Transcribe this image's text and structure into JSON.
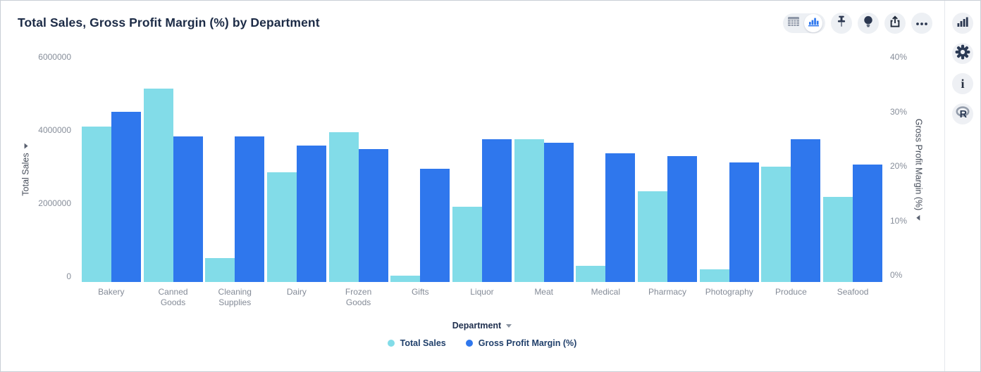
{
  "header": {
    "title": "Total Sales, Gross Profit Margin (%) by Department"
  },
  "toolbar": {
    "view_toggle": [
      {
        "name": "table-view",
        "icon": "table-icon",
        "active": false
      },
      {
        "name": "chart-view",
        "icon": "bar-chart-icon",
        "active": true
      }
    ],
    "buttons": [
      {
        "name": "pin",
        "icon": "pushpin-icon"
      },
      {
        "name": "insights",
        "icon": "lightbulb-icon"
      },
      {
        "name": "export",
        "icon": "share-icon"
      },
      {
        "name": "more",
        "icon": "ellipsis-icon"
      }
    ]
  },
  "rail": {
    "info_glyph": "i",
    "buttons": [
      {
        "name": "chart-options",
        "icon": "bar-chart-icon"
      },
      {
        "name": "settings",
        "icon": "gear-icon"
      },
      {
        "name": "info",
        "icon": "info-icon"
      },
      {
        "name": "r-analytics",
        "icon": "r-logo-icon"
      }
    ]
  },
  "chart_data": {
    "type": "bar",
    "title": "Total Sales, Gross Profit Margin (%) by Department",
    "grid": false,
    "legend_position": "bottom",
    "categories": [
      "Bakery",
      "Canned Goods",
      "Cleaning Supplies",
      "Dairy",
      "Frozen Goods",
      "Gifts",
      "Liquor",
      "Meat",
      "Medical",
      "Pharmacy",
      "Photography",
      "Produce",
      "Seafood"
    ],
    "category_label_lines": [
      [
        "Bakery"
      ],
      [
        "Canned",
        "Goods"
      ],
      [
        "Cleaning",
        "Supplies"
      ],
      [
        "Dairy"
      ],
      [
        "Frozen",
        "Goods"
      ],
      [
        "Gifts"
      ],
      [
        "Liquor"
      ],
      [
        "Meat"
      ],
      [
        "Medical"
      ],
      [
        "Pharmacy"
      ],
      [
        "Photography"
      ],
      [
        "Produce"
      ],
      [
        "Seafood"
      ]
    ],
    "series": [
      {
        "name": "Total Sales",
        "axis": "left",
        "color": "#82DCE8",
        "values": [
          4150000,
          5150000,
          640000,
          2930000,
          4000000,
          170000,
          2000000,
          3810000,
          430000,
          2420000,
          330000,
          3080000,
          2270000
        ]
      },
      {
        "name": "Gross Profit Margin (%)",
        "axis": "right",
        "color": "#2F77ED",
        "values": [
          30.6,
          26.2,
          26.2,
          24.6,
          23.9,
          20.4,
          25.7,
          25.1,
          23.2,
          22.6,
          21.5,
          25.7,
          21.2
        ]
      }
    ],
    "x_axis": {
      "title": "Department"
    },
    "y_left": {
      "title": "Total Sales",
      "ticks": [
        "0",
        "2000000",
        "4000000",
        "6000000"
      ],
      "max": 6000000,
      "ylim": [
        0,
        6000000
      ]
    },
    "y_right": {
      "title": "Gross Profit Margin (%)",
      "ticks": [
        "0%",
        "10%",
        "20%",
        "30%",
        "40%"
      ],
      "max": 40,
      "ylim": [
        0,
        40
      ]
    }
  },
  "colors": {
    "series_total_sales": "#82DCE8",
    "series_gross_profit_margin": "#2F77ED",
    "accent_blue": "#2E77EE",
    "title_text": "#1C2B46",
    "tick_text": "#878E9A",
    "legend_text": "#21406B",
    "toolbar_button_bg": "#EDF0F4",
    "icon_dark": "#2B3750",
    "divider": "#E5E8EC"
  }
}
